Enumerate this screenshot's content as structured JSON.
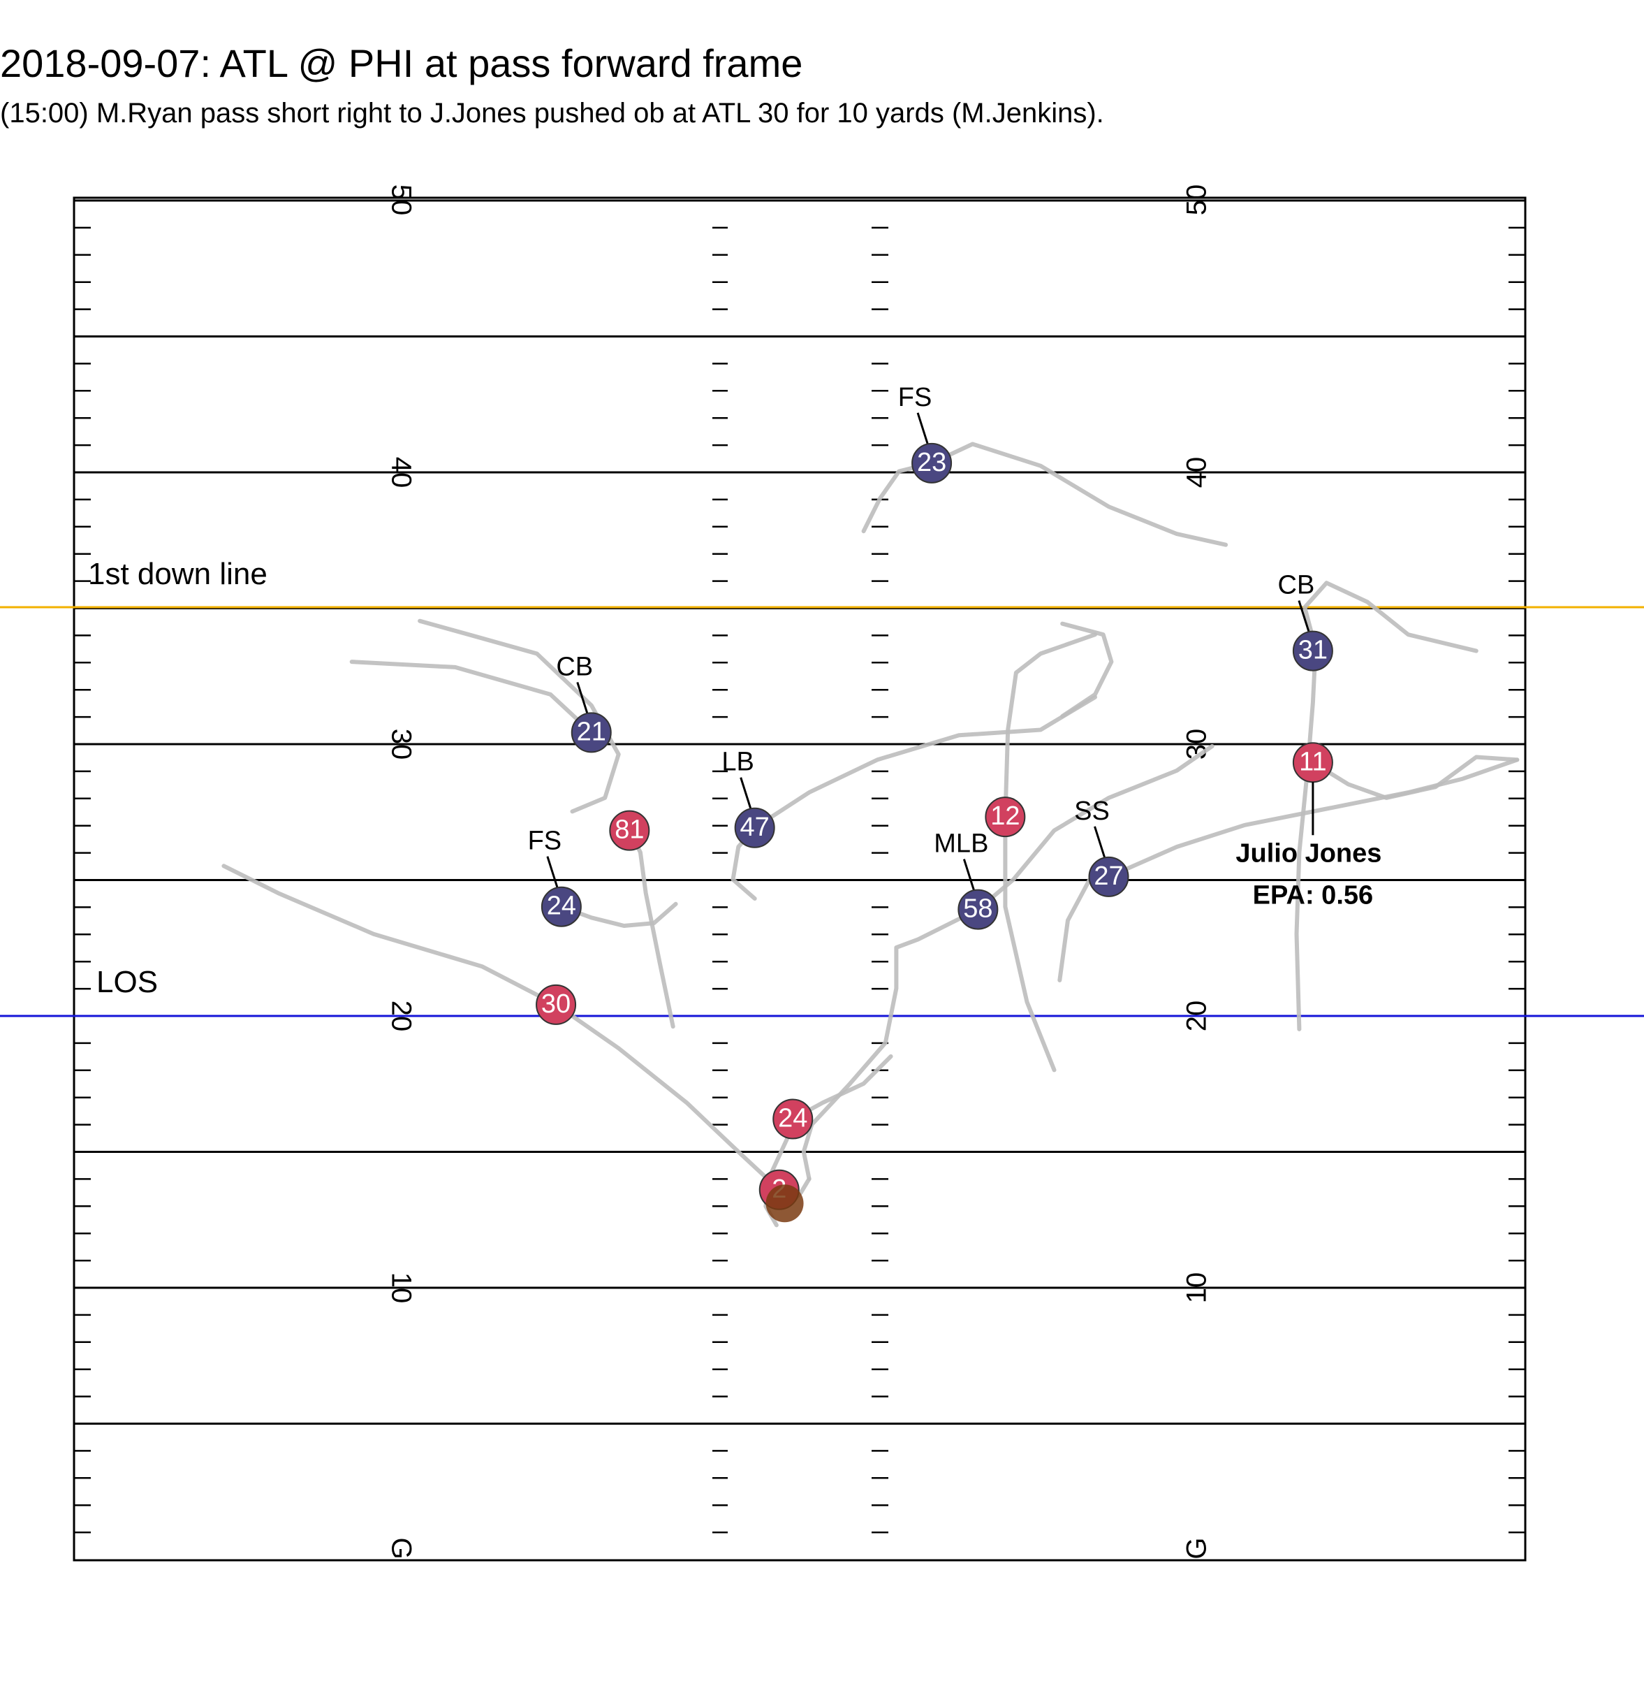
{
  "title": "2018-09-07: ATL @ PHI at pass forward frame",
  "subtitle": "(15:00) M.Ryan pass short right to J.Jones pushed ob at ATL 30 for 10 yards (M.Jenkins).",
  "colors": {
    "offense": "#d1415f",
    "defense": "#4a4781",
    "football": "#7a3b12",
    "los_line": "#1515d8",
    "first_down_line": "#f2b100",
    "track": "#bdbdbd"
  },
  "field": {
    "yard_labels": [
      "G",
      "10",
      "20",
      "30",
      "40",
      "50"
    ]
  },
  "lines": {
    "los": {
      "label": "LOS",
      "yardline": 20
    },
    "first_down": {
      "label": "1st down line",
      "yardline": 35
    }
  },
  "players": [
    {
      "team": "defense",
      "number": "23",
      "position": "FS",
      "x": 31.5,
      "y": 40.3
    },
    {
      "team": "defense",
      "number": "31",
      "position": "CB",
      "x": 45.5,
      "y": 33.4
    },
    {
      "team": "defense",
      "number": "21",
      "position": "CB",
      "x": 19.0,
      "y": 30.4
    },
    {
      "team": "defense",
      "number": "47",
      "position": "LB",
      "x": 25.0,
      "y": 26.9
    },
    {
      "team": "defense",
      "number": "24",
      "position": "FS",
      "x": 17.9,
      "y": 24.0
    },
    {
      "team": "defense",
      "number": "58",
      "position": "MLB",
      "x": 33.2,
      "y": 23.9
    },
    {
      "team": "defense",
      "number": "27",
      "position": "SS",
      "x": 38.0,
      "y": 25.1
    },
    {
      "team": "offense",
      "number": "11",
      "x": 45.5,
      "y": 29.3
    },
    {
      "team": "offense",
      "number": "81",
      "x": 20.4,
      "y": 26.8
    },
    {
      "team": "offense",
      "number": "12",
      "x": 34.2,
      "y": 27.3
    },
    {
      "team": "offense",
      "number": "30",
      "x": 17.7,
      "y": 20.4
    },
    {
      "team": "offense",
      "number": "24",
      "x": 26.4,
      "y": 16.2
    },
    {
      "team": "offense",
      "number": "2",
      "x": 25.9,
      "y": 13.6
    }
  ],
  "football": {
    "x": 26.1,
    "y": 13.1
  },
  "highlight": {
    "name": "Julio Jones",
    "epa_label": "EPA: 0.56",
    "number": "11"
  },
  "tracks": [
    [
      [
        29.0,
        37.8
      ],
      [
        29.6,
        39.0
      ],
      [
        30.3,
        40.0
      ],
      [
        31.5,
        40.3
      ],
      [
        33.0,
        41.0
      ],
      [
        35.5,
        40.2
      ],
      [
        38.0,
        38.7
      ],
      [
        40.5,
        37.7
      ],
      [
        42.3,
        37.3
      ]
    ],
    [
      [
        45.0,
        19.5
      ],
      [
        44.9,
        23.0
      ],
      [
        45.0,
        26.0
      ],
      [
        45.3,
        29.0
      ],
      [
        45.5,
        31.5
      ],
      [
        45.6,
        33.5
      ],
      [
        45.2,
        35.0
      ],
      [
        46.0,
        35.9
      ],
      [
        47.5,
        35.2
      ],
      [
        49.0,
        34.0
      ],
      [
        51.5,
        33.4
      ]
    ],
    [
      [
        45.5,
        29.3
      ],
      [
        46.8,
        28.5
      ],
      [
        48.2,
        28.0
      ],
      [
        50.0,
        28.4
      ],
      [
        51.5,
        29.5
      ],
      [
        53.0,
        29.4
      ]
    ],
    [
      [
        12.7,
        34.5
      ],
      [
        14.5,
        34.0
      ],
      [
        17.0,
        33.3
      ],
      [
        19.0,
        31.4
      ],
      [
        20.0,
        29.6
      ],
      [
        19.5,
        28.0
      ],
      [
        18.3,
        27.5
      ]
    ],
    [
      [
        10.2,
        33.0
      ],
      [
        14.0,
        32.8
      ],
      [
        17.5,
        31.8
      ],
      [
        19.0,
        30.4
      ]
    ],
    [
      [
        25.0,
        24.3
      ],
      [
        24.2,
        25.0
      ],
      [
        24.4,
        26.2
      ],
      [
        25.0,
        26.9
      ],
      [
        27.0,
        28.2
      ],
      [
        29.5,
        29.4
      ],
      [
        32.5,
        30.3
      ],
      [
        35.5,
        30.5
      ],
      [
        37.5,
        31.7
      ]
    ],
    [
      [
        22.1,
        24.1
      ],
      [
        21.3,
        23.4
      ],
      [
        20.2,
        23.3
      ],
      [
        19.0,
        23.6
      ],
      [
        17.9,
        24.0
      ]
    ],
    [
      [
        27.0,
        14.0
      ],
      [
        26.8,
        15.0
      ],
      [
        27.1,
        16.0
      ],
      [
        28.5,
        17.5
      ],
      [
        29.8,
        19.0
      ],
      [
        30.2,
        21.0
      ],
      [
        30.2,
        22.5
      ],
      [
        31.0,
        22.8
      ],
      [
        33.2,
        23.9
      ],
      [
        34.5,
        25.0
      ],
      [
        36.0,
        26.8
      ],
      [
        38.0,
        28.0
      ],
      [
        40.5,
        29.0
      ],
      [
        41.8,
        29.9
      ]
    ],
    [
      [
        36.3,
        31.0
      ],
      [
        37.5,
        31.8
      ],
      [
        38.1,
        33.0
      ],
      [
        37.8,
        34.0
      ],
      [
        36.3,
        34.4
      ]
    ],
    [
      [
        36.0,
        18.0
      ],
      [
        35.0,
        20.5
      ],
      [
        34.2,
        24.0
      ],
      [
        34.2,
        27.3
      ],
      [
        34.3,
        30.5
      ],
      [
        34.6,
        32.6
      ],
      [
        35.5,
        33.3
      ],
      [
        37.5,
        34.0
      ]
    ],
    [
      [
        36.2,
        21.3
      ],
      [
        36.5,
        23.5
      ],
      [
        37.3,
        25.0
      ],
      [
        38.0,
        25.1
      ],
      [
        40.5,
        26.2
      ],
      [
        43.0,
        27.0
      ],
      [
        46.0,
        27.6
      ],
      [
        49.0,
        28.2
      ],
      [
        51.0,
        28.7
      ],
      [
        53.0,
        29.4
      ]
    ],
    [
      [
        22.0,
        19.6
      ],
      [
        21.5,
        22.0
      ],
      [
        21.0,
        24.5
      ],
      [
        20.8,
        26.0
      ],
      [
        20.4,
        26.8
      ]
    ],
    [
      [
        5.5,
        25.5
      ],
      [
        7.5,
        24.5
      ],
      [
        11.0,
        23.0
      ],
      [
        15.0,
        21.8
      ],
      [
        17.7,
        20.4
      ],
      [
        20.0,
        18.8
      ],
      [
        22.5,
        16.8
      ],
      [
        24.5,
        14.9
      ],
      [
        25.9,
        13.6
      ]
    ],
    [
      [
        25.8,
        12.3
      ],
      [
        25.4,
        13.0
      ],
      [
        25.6,
        14.2
      ],
      [
        26.2,
        15.5
      ],
      [
        26.4,
        16.2
      ],
      [
        27.5,
        16.8
      ],
      [
        29.0,
        17.5
      ],
      [
        30.0,
        18.5
      ]
    ],
    [
      [
        27.0,
        14.0
      ],
      [
        26.7,
        13.5
      ],
      [
        26.2,
        13.0
      ]
    ]
  ]
}
